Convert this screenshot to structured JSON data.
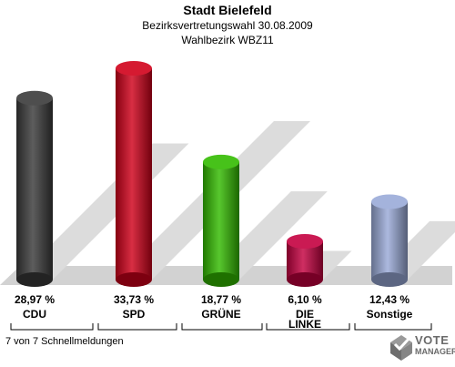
{
  "header": {
    "title": "Stadt Bielefeld",
    "subtitle": "Bezirksvertretungswahl 30.08.2009",
    "district": "Wahlbezirk WBZ11"
  },
  "chart_data": {
    "type": "bar",
    "categories": [
      "CDU",
      "SPD",
      "GRÜNE",
      "DIE LINKE",
      "Sonstige"
    ],
    "values": [
      28.97,
      33.73,
      18.77,
      6.1,
      12.43
    ],
    "value_labels": [
      "28,97 %",
      "33,73 %",
      "18,77 %",
      "6,10 %",
      "12,43 %"
    ],
    "category_labels": [
      [
        "CDU"
      ],
      [
        "SPD"
      ],
      [
        "GRÜNE"
      ],
      [
        "DIE",
        "LINKE"
      ],
      [
        "Sonstige"
      ]
    ],
    "colors": [
      "#3a3a3a",
      "#d0001a",
      "#33bb00",
      "#c40040",
      "#9aaad8"
    ],
    "ylim": [
      0,
      35
    ],
    "grid": false,
    "legend": "none"
  },
  "footer": {
    "note": "7 von 7 Schnellmeldungen",
    "logo_line1": "VOTE",
    "logo_line2": "MANAGER",
    "logo_icon": "ballot-check-icon"
  }
}
